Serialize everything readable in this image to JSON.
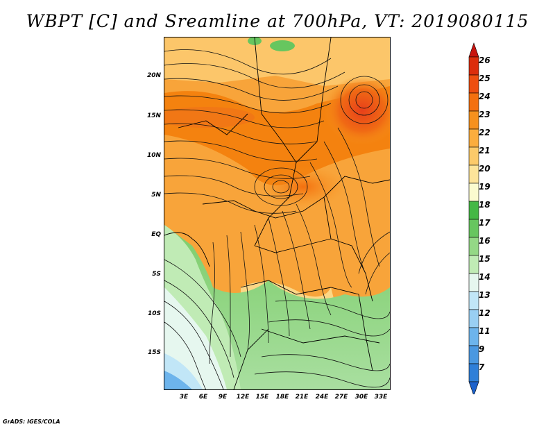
{
  "title": "WBPT [C] and Sreamline at 700hPa, VT: 2019080115",
  "footer": "GrADS: IGES/COLA",
  "map": {
    "lat_ticks": [
      "20N",
      "15N",
      "10N",
      "5N",
      "EQ",
      "5S",
      "10S",
      "15S"
    ],
    "lon_ticks": [
      "3E",
      "6E",
      "9E",
      "12E",
      "15E",
      "18E",
      "21E",
      "24E",
      "27E",
      "30E",
      "33E"
    ],
    "lat_values": [
      20,
      15,
      10,
      5,
      0,
      -5,
      -10,
      -15
    ],
    "lon_values": [
      3,
      6,
      9,
      12,
      15,
      18,
      21,
      24,
      27,
      30,
      33
    ]
  },
  "colorbar": {
    "labels": [
      "26",
      "25",
      "24",
      "23",
      "22",
      "21",
      "20",
      "19",
      "18",
      "17",
      "16",
      "15",
      "14",
      "13",
      "12",
      "11",
      "9",
      "7"
    ],
    "colors": [
      "#c8140f",
      "#dc2d0c",
      "#ee4e10",
      "#f4700f",
      "#f6911e",
      "#fbad3e",
      "#fcca6a",
      "#fde49a",
      "#fbfbcf",
      "#44b845",
      "#67c65f",
      "#94d886",
      "#c0ebb5",
      "#e6f7ef",
      "#c1e6f7",
      "#99cff3",
      "#6db4ec",
      "#4a98e1",
      "#2f7fd8",
      "#1d62cb"
    ]
  }
}
